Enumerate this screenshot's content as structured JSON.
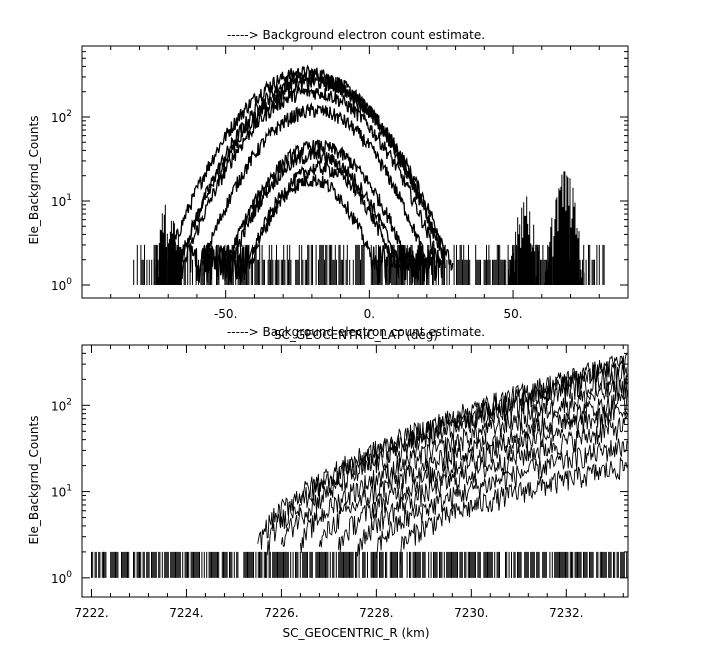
{
  "chart_data": [
    {
      "type": "line",
      "title": "-----> Background electron count estimate.",
      "xlabel": "SC_GEOCENTRIC_LAT (deg)",
      "ylabel": "Ele_Backgrnd_Counts",
      "xscale": "linear",
      "yscale": "log",
      "xlim": [
        -100,
        90
      ],
      "ylim": [
        0.7,
        700
      ],
      "x_ticks": [
        -50,
        0,
        50
      ],
      "x_tick_labels": [
        "-50.",
        "0.",
        "50."
      ],
      "y_ticks": [
        1,
        10,
        100
      ],
      "y_tick_labels": [
        {
          "base": "10",
          "exp": "0"
        },
        {
          "base": "10",
          "exp": "1"
        },
        {
          "base": "10",
          "exp": "2"
        }
      ],
      "grid": false,
      "data_range_x": [
        -82,
        82
      ],
      "noise_floor_counts": [
        1,
        3
      ],
      "series": [
        {
          "peak_x": -22,
          "peak_y": 340,
          "half_width": 30
        },
        {
          "peak_x": -20,
          "peak_y": 300,
          "half_width": 29
        },
        {
          "peak_x": -19,
          "peak_y": 260,
          "half_width": 30
        },
        {
          "peak_x": -20,
          "peak_y": 200,
          "half_width": 29
        },
        {
          "peak_x": -19,
          "peak_y": 120,
          "half_width": 27
        },
        {
          "peak_x": -18,
          "peak_y": 45,
          "half_width": 25
        },
        {
          "peak_x": -19,
          "peak_y": 35,
          "half_width": 24
        },
        {
          "peak_x": -17,
          "peak_y": 25,
          "half_width": 22
        },
        {
          "peak_x": -20,
          "peak_y": 18,
          "half_width": 20
        }
      ],
      "secondary_bumps": [
        {
          "center_x": 54,
          "peak_y": 10
        },
        {
          "center_x": 68,
          "peak_y": 20
        },
        {
          "center_x": -70,
          "peak_y": 8
        }
      ]
    },
    {
      "type": "line",
      "title": "-----> Background electron count estimate.",
      "xlabel": "SC_GEOCENTRIC_R (km)",
      "ylabel": "Ele_Backgrnd_Counts",
      "xscale": "linear",
      "yscale": "log",
      "xlim": [
        7221.8,
        7233.3
      ],
      "ylim": [
        0.6,
        500
      ],
      "x_ticks": [
        7222,
        7224,
        7226,
        7228,
        7230,
        7232
      ],
      "x_tick_labels": [
        "7222.",
        "7224.",
        "7226.",
        "7228.",
        "7230.",
        "7232."
      ],
      "y_ticks": [
        1,
        10,
        100
      ],
      "y_tick_labels": [
        {
          "base": "10",
          "exp": "0"
        },
        {
          "base": "10",
          "exp": "1"
        },
        {
          "base": "10",
          "exp": "2"
        }
      ],
      "grid": false,
      "data_range_x": [
        7222,
        7233.3
      ],
      "noise_floor_counts": [
        1,
        2
      ],
      "series": [
        {
          "onset_x": 7225.5,
          "end_y": 330
        },
        {
          "onset_x": 7225.7,
          "end_y": 300
        },
        {
          "onset_x": 7226.0,
          "end_y": 250
        },
        {
          "onset_x": 7226.4,
          "end_y": 170
        },
        {
          "onset_x": 7226.8,
          "end_y": 120
        },
        {
          "onset_x": 7227.2,
          "end_y": 90
        },
        {
          "onset_x": 7227.6,
          "end_y": 60
        },
        {
          "onset_x": 7228.0,
          "end_y": 35
        },
        {
          "onset_x": 7228.5,
          "end_y": 20
        }
      ]
    }
  ]
}
